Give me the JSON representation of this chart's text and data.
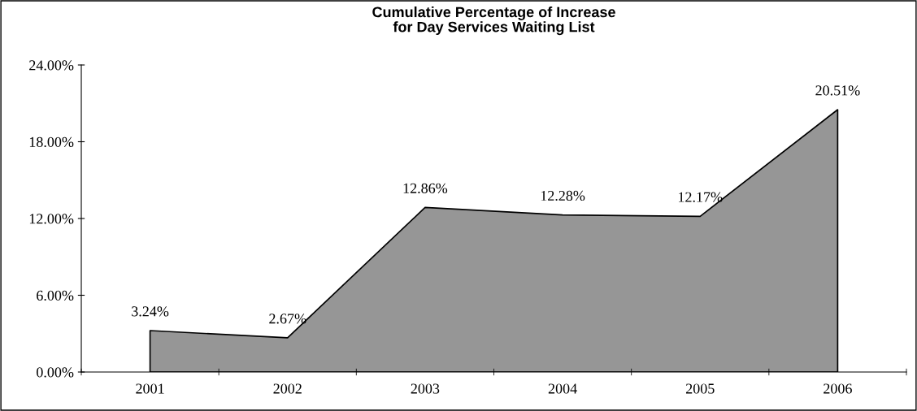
{
  "chart_data": {
    "type": "area",
    "title": "Cumulative Percentage of Increase\nfor Day Services Waiting List",
    "categories": [
      "2001",
      "2002",
      "2003",
      "2004",
      "2005",
      "2006"
    ],
    "values": [
      3.24,
      2.67,
      12.86,
      12.28,
      12.17,
      20.51
    ],
    "value_labels": [
      "3.24%",
      "2.67%",
      "12.86%",
      "12.28%",
      "12.17%",
      "20.51%"
    ],
    "color": "#969696",
    "ylim": [
      0,
      24
    ],
    "yticks": [
      {
        "value": 0,
        "label": "0.00%"
      },
      {
        "value": 6,
        "label": "6.00%"
      },
      {
        "value": 12,
        "label": "12.00%"
      },
      {
        "value": 18,
        "label": "18.00%"
      },
      {
        "value": 24,
        "label": "24.00%"
      }
    ],
    "grid": false,
    "legend": false
  }
}
